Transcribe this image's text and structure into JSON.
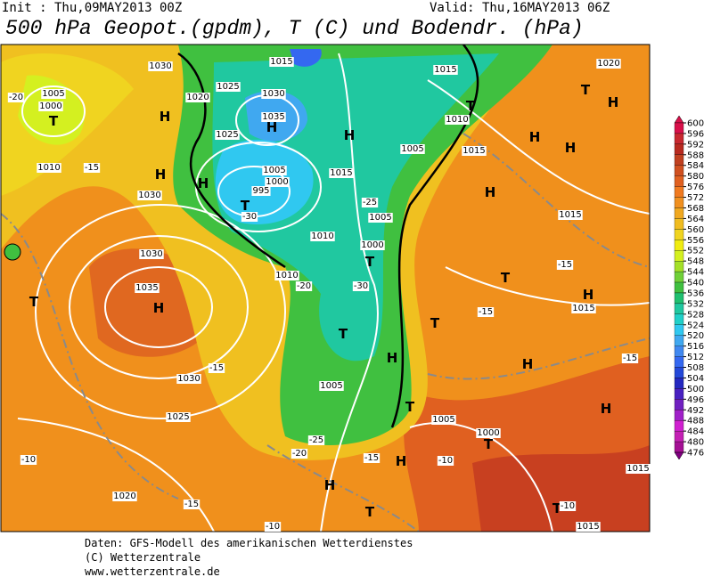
{
  "header": {
    "init": "Init : Thu,09MAY2013 00Z",
    "valid": "Valid: Thu,16MAY2013 06Z",
    "title": "500 hPa Geopot.(gpdm), T (C) und Bodendr. (hPa)"
  },
  "map_labels": [
    "1030",
    "1005",
    "1000",
    "T",
    "H",
    "H",
    "1010",
    "1030",
    "-15",
    "-20",
    "1020",
    "1025",
    "1030",
    "1035",
    "H",
    "1025",
    "1005",
    "1000",
    "995",
    "T",
    "H",
    "-30",
    "1015",
    "1015",
    "1020",
    "T",
    "1010",
    "1005",
    "1015",
    "H",
    "H",
    "H",
    "H",
    "T",
    "H",
    "1015",
    "-25",
    "1005",
    "1010",
    "1000",
    "T",
    "-30",
    "1010",
    "1030",
    "1035",
    "H",
    "T",
    "1030",
    "1025",
    "1020",
    "-15",
    "-10",
    "1005",
    "H",
    "T",
    "T",
    "1005",
    "1000",
    "T",
    "H",
    "-25",
    "H",
    "T",
    "1015",
    "T",
    "1015",
    "H",
    "H",
    "-15",
    "1015",
    "H",
    "1015",
    "T",
    "-15",
    "-15",
    "T",
    "-20",
    "-20",
    "-15",
    "-10",
    "-10",
    "-15",
    "-10"
  ],
  "colorbar": {
    "ticks": [
      600,
      596,
      592,
      588,
      584,
      580,
      576,
      572,
      568,
      564,
      560,
      556,
      552,
      548,
      544,
      540,
      536,
      532,
      528,
      524,
      520,
      516,
      512,
      508,
      504,
      500,
      496,
      492,
      488,
      484,
      480,
      476
    ],
    "colors": [
      "#d8104a",
      "#c82830",
      "#b82a20",
      "#c04020",
      "#d05020",
      "#e06020",
      "#f07a20",
      "#f09020",
      "#f0a820",
      "#f0bc20",
      "#f0d420",
      "#f0ec10",
      "#d4f020",
      "#a4e028",
      "#70d038",
      "#40c040",
      "#20c070",
      "#20c8a0",
      "#20d0c8",
      "#30c8f0",
      "#40a8f0",
      "#4088f0",
      "#3468f0",
      "#2448d8",
      "#2428c0",
      "#4820c0",
      "#7020c0",
      "#a020c8",
      "#d020d0",
      "#c420b4",
      "#a41094",
      "#800080"
    ]
  },
  "footer": [
    "Daten: GFS-Modell des amerikanischen Wetterdienstes",
    "(C) Wetterzentrale",
    "www.wetterzentrale.de"
  ]
}
